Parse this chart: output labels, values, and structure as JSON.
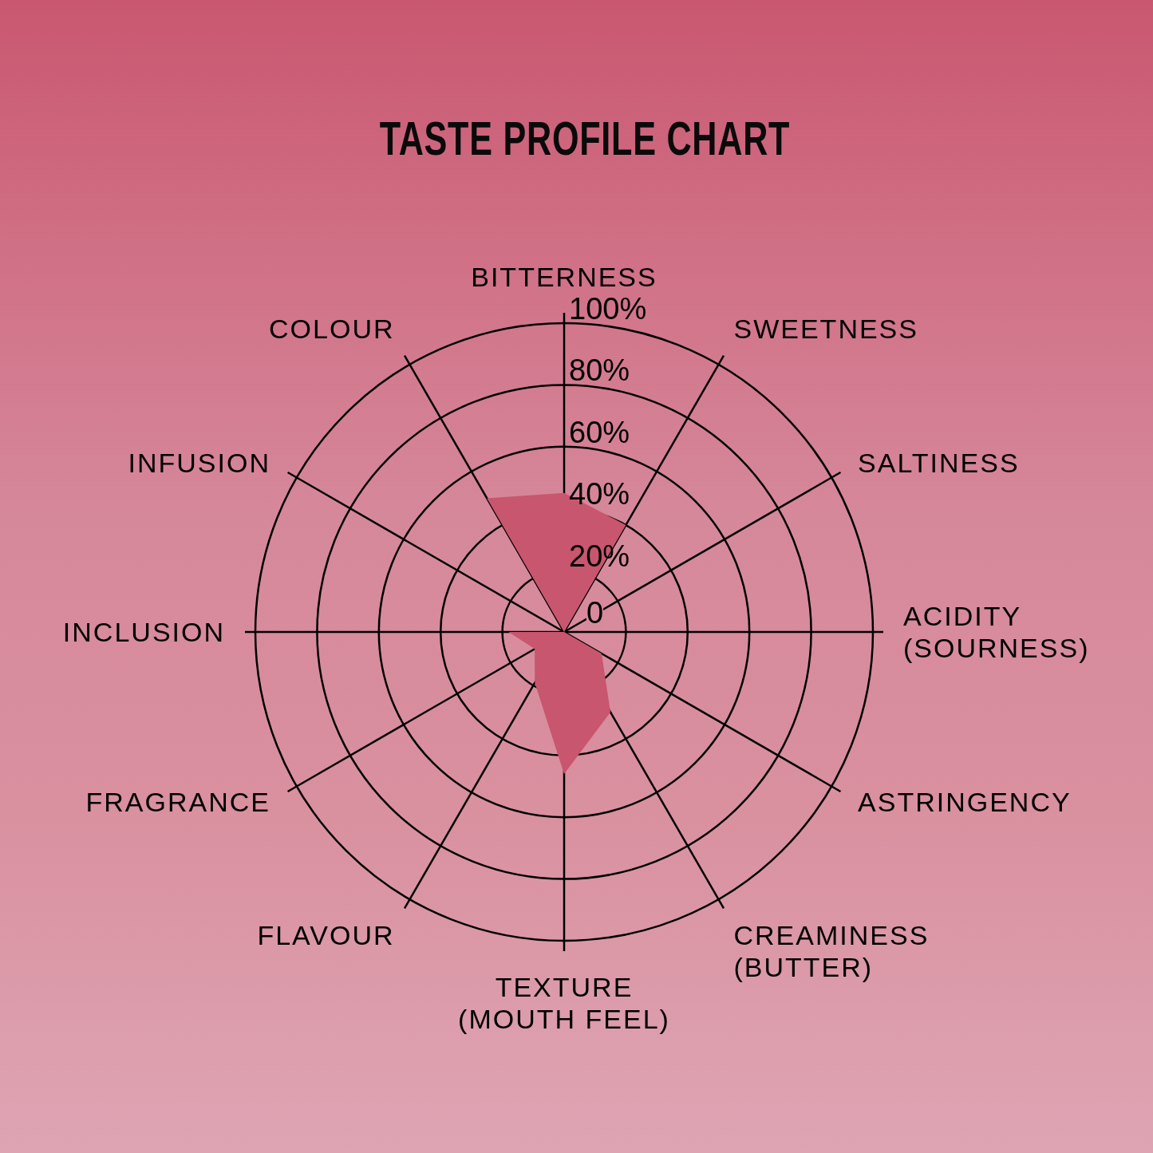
{
  "chart_data": {
    "type": "radar",
    "title": "TASTE PROFILE CHART",
    "categories": [
      "BITTERNESS",
      "SWEETNESS",
      "SALTINESS",
      "ACIDITY (SOURNESS)",
      "ASTRINGENCY",
      "CREAMINESS (BUTTER)",
      "TEXTURE (MOUTH FEEL)",
      "FLAVOUR",
      "FRAGRANCE",
      "INCLUSION",
      "INFUSION",
      "COLOUR"
    ],
    "values": [
      45,
      40,
      0,
      0,
      14,
      30,
      46,
      19,
      11,
      18,
      0,
      50
    ],
    "color": "#c8566e",
    "ylim": [
      0,
      100
    ],
    "yticks": [
      0,
      {
        "value": 20,
        "label": "20%"
      },
      {
        "value": 40,
        "label": "40%"
      },
      {
        "value": 60,
        "label": "60%"
      },
      {
        "value": 80,
        "label": "80%"
      },
      {
        "value": 100,
        "label": "100%"
      }
    ],
    "grid": true
  }
}
